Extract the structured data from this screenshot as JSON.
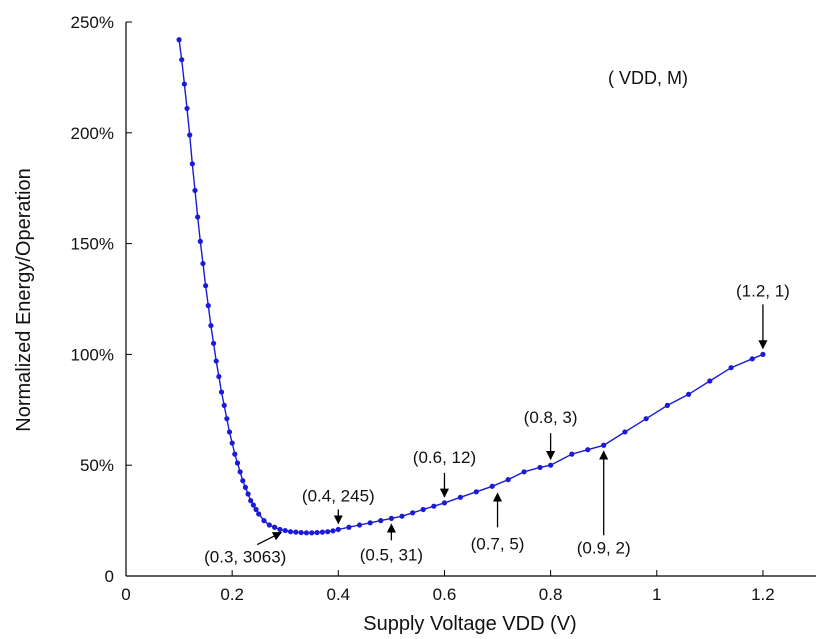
{
  "chart_data": {
    "type": "line",
    "xlabel": "Supply Voltage VDD (V)",
    "ylabel": "Normalized Energy/Operation",
    "xlim": [
      0,
      1.3
    ],
    "ylim": [
      0,
      250
    ],
    "x_ticks": [
      0,
      0.2,
      0.4,
      0.6,
      0.8,
      1,
      1.2
    ],
    "x_tick_labels": [
      "0",
      "0.2",
      "0.4",
      "0.6",
      "0.8",
      "1",
      "1.2"
    ],
    "y_ticks": [
      0,
      50,
      100,
      150,
      200,
      250
    ],
    "y_tick_labels": [
      "0",
      "50%",
      "100%",
      "150%",
      "200%",
      "250%"
    ],
    "grid": false,
    "legend_note": "( VDD, M)",
    "series": [
      {
        "color": "#1a1ad8",
        "x": [
          0.1,
          0.105,
          0.11,
          0.115,
          0.12,
          0.125,
          0.13,
          0.135,
          0.14,
          0.145,
          0.15,
          0.155,
          0.16,
          0.165,
          0.17,
          0.175,
          0.18,
          0.185,
          0.19,
          0.195,
          0.2,
          0.205,
          0.21,
          0.215,
          0.22,
          0.225,
          0.23,
          0.235,
          0.24,
          0.245,
          0.25,
          0.26,
          0.27,
          0.28,
          0.29,
          0.3,
          0.31,
          0.32,
          0.33,
          0.34,
          0.35,
          0.36,
          0.37,
          0.38,
          0.39,
          0.4,
          0.42,
          0.44,
          0.46,
          0.48,
          0.5,
          0.52,
          0.54,
          0.56,
          0.58,
          0.6,
          0.63,
          0.66,
          0.69,
          0.72,
          0.75,
          0.78,
          0.8,
          0.84,
          0.87,
          0.9,
          0.94,
          0.98,
          1.02,
          1.06,
          1.1,
          1.14,
          1.18,
          1.2
        ],
        "y": [
          242,
          233,
          222,
          211,
          199,
          186,
          174,
          162,
          151,
          141,
          131,
          122,
          113,
          105,
          97,
          90,
          83,
          77,
          71,
          65,
          60,
          55,
          51,
          47,
          43,
          40,
          37,
          34,
          32,
          30,
          28,
          25,
          23,
          22,
          21,
          20.5,
          20,
          19.8,
          19.6,
          19.5,
          19.5,
          19.6,
          19.8,
          20,
          20.4,
          21,
          22,
          23,
          24,
          25,
          26,
          27,
          28.5,
          30,
          31.5,
          33,
          35.5,
          38,
          40.5,
          43.5,
          47,
          49,
          50,
          55,
          57,
          59,
          65,
          71,
          77,
          82,
          88,
          94,
          98,
          100
        ]
      }
    ],
    "annotations": [
      {
        "text": "(1.2, 1)",
        "x": 1.2,
        "y": 100,
        "dir": "down"
      },
      {
        "text": "(0.8, 3)",
        "x": 0.8,
        "y": 50,
        "dir": "down"
      },
      {
        "text": "(0.6, 12)",
        "x": 0.6,
        "y": 33,
        "dir": "down"
      },
      {
        "text": "(0.4, 245)",
        "x": 0.4,
        "y": 21,
        "dir": "down"
      },
      {
        "text": "(0.3, 3063)",
        "x": 0.3,
        "y": 20.5,
        "dir": "diag"
      },
      {
        "text": "(0.5, 31)",
        "x": 0.5,
        "y": 26,
        "dir": "up"
      },
      {
        "text": "(0.7, 5)",
        "x": 0.7,
        "y": 40,
        "dir": "up"
      },
      {
        "text": "(0.9, 2)",
        "x": 0.9,
        "y": 59,
        "dir": "up"
      }
    ]
  }
}
